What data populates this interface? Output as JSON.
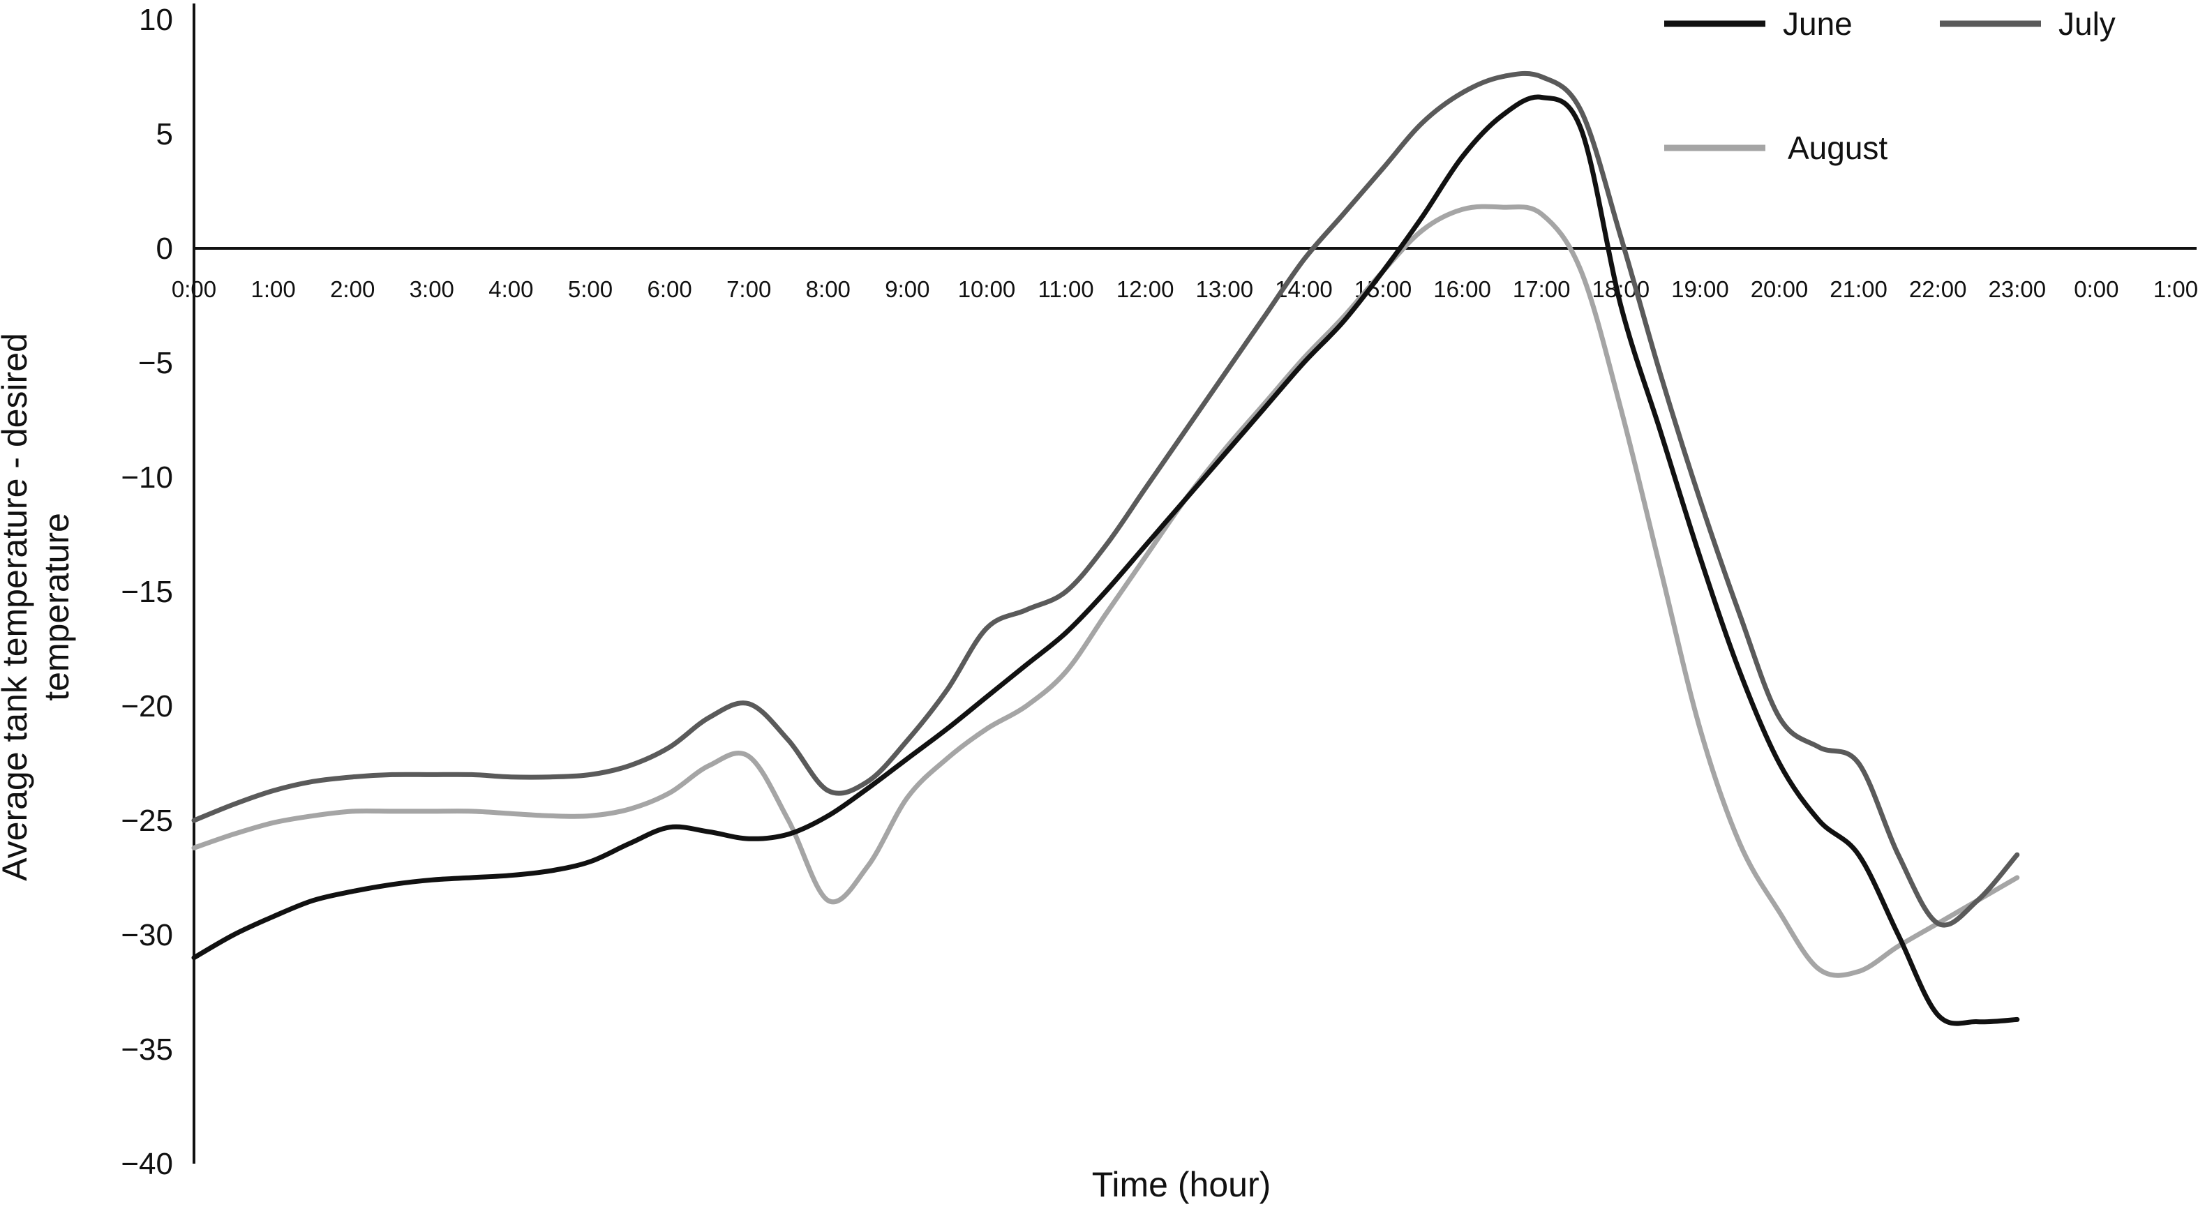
{
  "chart_data": {
    "type": "line",
    "xlabel": "Time (hour)",
    "ylabel_lines": [
      "Average tank temperature - desired",
      "temperature"
    ],
    "x_tick_labels": [
      "0:00",
      "1:00",
      "2:00",
      "3:00",
      "4:00",
      "5:00",
      "6:00",
      "7:00",
      "8:00",
      "9:00",
      "10:00",
      "11:00",
      "12:00",
      "13:00",
      "14:00",
      "15:00",
      "16:00",
      "17:00",
      "18:00",
      "19:00",
      "20:00",
      "21:00",
      "22:00",
      "23:00",
      "0:00",
      "1:00"
    ],
    "y_tick_labels": [
      "10",
      "5",
      "0",
      "−5",
      "−10",
      "−15",
      "−20",
      "−25",
      "−30",
      "−35",
      "−40"
    ],
    "ylim": [
      -40,
      10
    ],
    "xlim_hours": [
      0,
      25
    ],
    "grid": false,
    "legend_position": "top-right",
    "series": [
      {
        "name": "June",
        "color": "#111111",
        "x_hours": [
          0,
          0.5,
          1,
          1.5,
          2,
          2.5,
          3,
          3.5,
          4,
          4.5,
          5,
          5.5,
          6,
          6.5,
          7,
          7.5,
          8,
          8.5,
          9,
          9.5,
          10,
          10.5,
          11,
          11.5,
          12,
          12.5,
          13,
          13.5,
          14,
          14.5,
          15,
          15.5,
          16,
          16.5,
          17,
          17.5,
          18,
          18.5,
          19,
          19.5,
          20,
          20.5,
          21,
          21.5,
          22,
          22.5,
          23
        ],
        "values": [
          -31,
          -30,
          -29.2,
          -28.5,
          -28.1,
          -27.8,
          -27.6,
          -27.5,
          -27.4,
          -27.2,
          -26.8,
          -26,
          -25.3,
          -25.5,
          -25.8,
          -25.6,
          -24.8,
          -23.6,
          -22.3,
          -21,
          -19.6,
          -18.2,
          -16.8,
          -15,
          -13,
          -11,
          -9,
          -7,
          -5,
          -3.2,
          -1,
          1.4,
          4,
          5.8,
          6.6,
          5.2,
          -2.5,
          -8,
          -13.5,
          -18.5,
          -22.5,
          -25,
          -26.5,
          -30,
          -33.5,
          -33.8,
          -33.7
        ]
      },
      {
        "name": "July",
        "color": "#5a5a5a",
        "x_hours": [
          0,
          0.5,
          1,
          1.5,
          2,
          2.5,
          3,
          3.5,
          4,
          4.5,
          5,
          5.5,
          6,
          6.5,
          7,
          7.5,
          8,
          8.5,
          9,
          9.5,
          10,
          10.5,
          11,
          11.5,
          12,
          12.5,
          13,
          13.5,
          14,
          14.5,
          15,
          15.5,
          16,
          16.5,
          17,
          17.5,
          18,
          18.5,
          19,
          19.5,
          20,
          20.5,
          21,
          21.5,
          22,
          22.5,
          23
        ],
        "values": [
          -25,
          -24.3,
          -23.7,
          -23.3,
          -23.1,
          -23,
          -23,
          -23,
          -23.1,
          -23.1,
          -23,
          -22.6,
          -21.8,
          -20.5,
          -19.9,
          -21.5,
          -23.7,
          -23.3,
          -21.5,
          -19.3,
          -16.6,
          -15.8,
          -15,
          -13,
          -10.5,
          -8,
          -5.5,
          -3,
          -0.5,
          1.5,
          3.5,
          5.5,
          6.8,
          7.5,
          7.5,
          6,
          0.5,
          -5.5,
          -11,
          -16,
          -20.5,
          -21.8,
          -22.5,
          -26.5,
          -29.5,
          -28.5,
          -26.5
        ]
      },
      {
        "name": "August",
        "color": "#a5a5a5",
        "x_hours": [
          0,
          0.5,
          1,
          1.5,
          2,
          2.5,
          3,
          3.5,
          4,
          4.5,
          5,
          5.5,
          6,
          6.5,
          7,
          7.5,
          8,
          8.5,
          9,
          9.5,
          10,
          10.5,
          11,
          11.5,
          12,
          12.5,
          13,
          13.5,
          14,
          14.5,
          15,
          15.5,
          16,
          16.5,
          17,
          17.5,
          18,
          18.5,
          19,
          19.5,
          20,
          20.5,
          21,
          21.5,
          22,
          22.5,
          23
        ],
        "values": [
          -26.2,
          -25.6,
          -25.1,
          -24.8,
          -24.6,
          -24.6,
          -24.6,
          -24.6,
          -24.7,
          -24.8,
          -24.8,
          -24.5,
          -23.8,
          -22.6,
          -22.2,
          -25,
          -28.5,
          -27,
          -24,
          -22.3,
          -21,
          -20,
          -18.5,
          -16,
          -13.5,
          -11,
          -8.8,
          -6.8,
          -4.8,
          -3,
          -1,
          0.8,
          1.7,
          1.8,
          1.5,
          -1,
          -7,
          -14,
          -21,
          -26,
          -29,
          -31.5,
          -31.6,
          -30.5,
          -29.5,
          -28.5,
          -27.5
        ]
      }
    ]
  }
}
